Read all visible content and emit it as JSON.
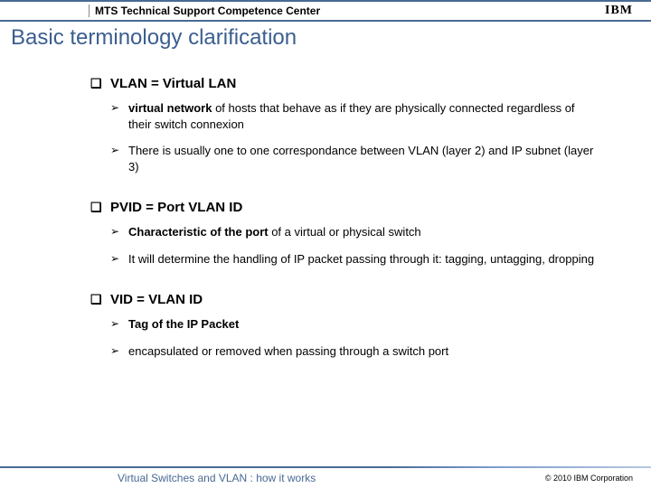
{
  "header": {
    "title": "MTS Technical Support Competence Center",
    "logo": "IBM"
  },
  "slide": {
    "title": "Basic terminology clarification"
  },
  "sections": [
    {
      "title": "VLAN = Virtual LAN",
      "bullets": [
        {
          "bold": "virtual network",
          "rest": " of hosts that behave as if they are physically connected regardless of their switch connexion"
        },
        {
          "bold": "",
          "rest": "There is usually one to one correspondance between VLAN (layer 2) and IP subnet (layer 3)"
        }
      ]
    },
    {
      "title": "PVID = Port VLAN ID",
      "bullets": [
        {
          "bold": "Characteristic of the port",
          "rest": " of a virtual or physical switch"
        },
        {
          "bold": "",
          "rest": "It will determine the handling of IP packet passing through it: tagging, untagging, dropping"
        }
      ]
    },
    {
      "title": "VID = VLAN ID",
      "bullets": [
        {
          "bold": "Tag of the IP Packet",
          "rest": ""
        },
        {
          "bold": "",
          "rest": "encapsulated or removed when passing through a switch port"
        }
      ]
    }
  ],
  "footer": {
    "left": "Virtual Switches and VLAN : how it works",
    "right": "© 2010 IBM Corporation"
  },
  "colors": {
    "accent": "#4a6a94",
    "title": "#3c5e8f",
    "footer_text": "#486993"
  }
}
